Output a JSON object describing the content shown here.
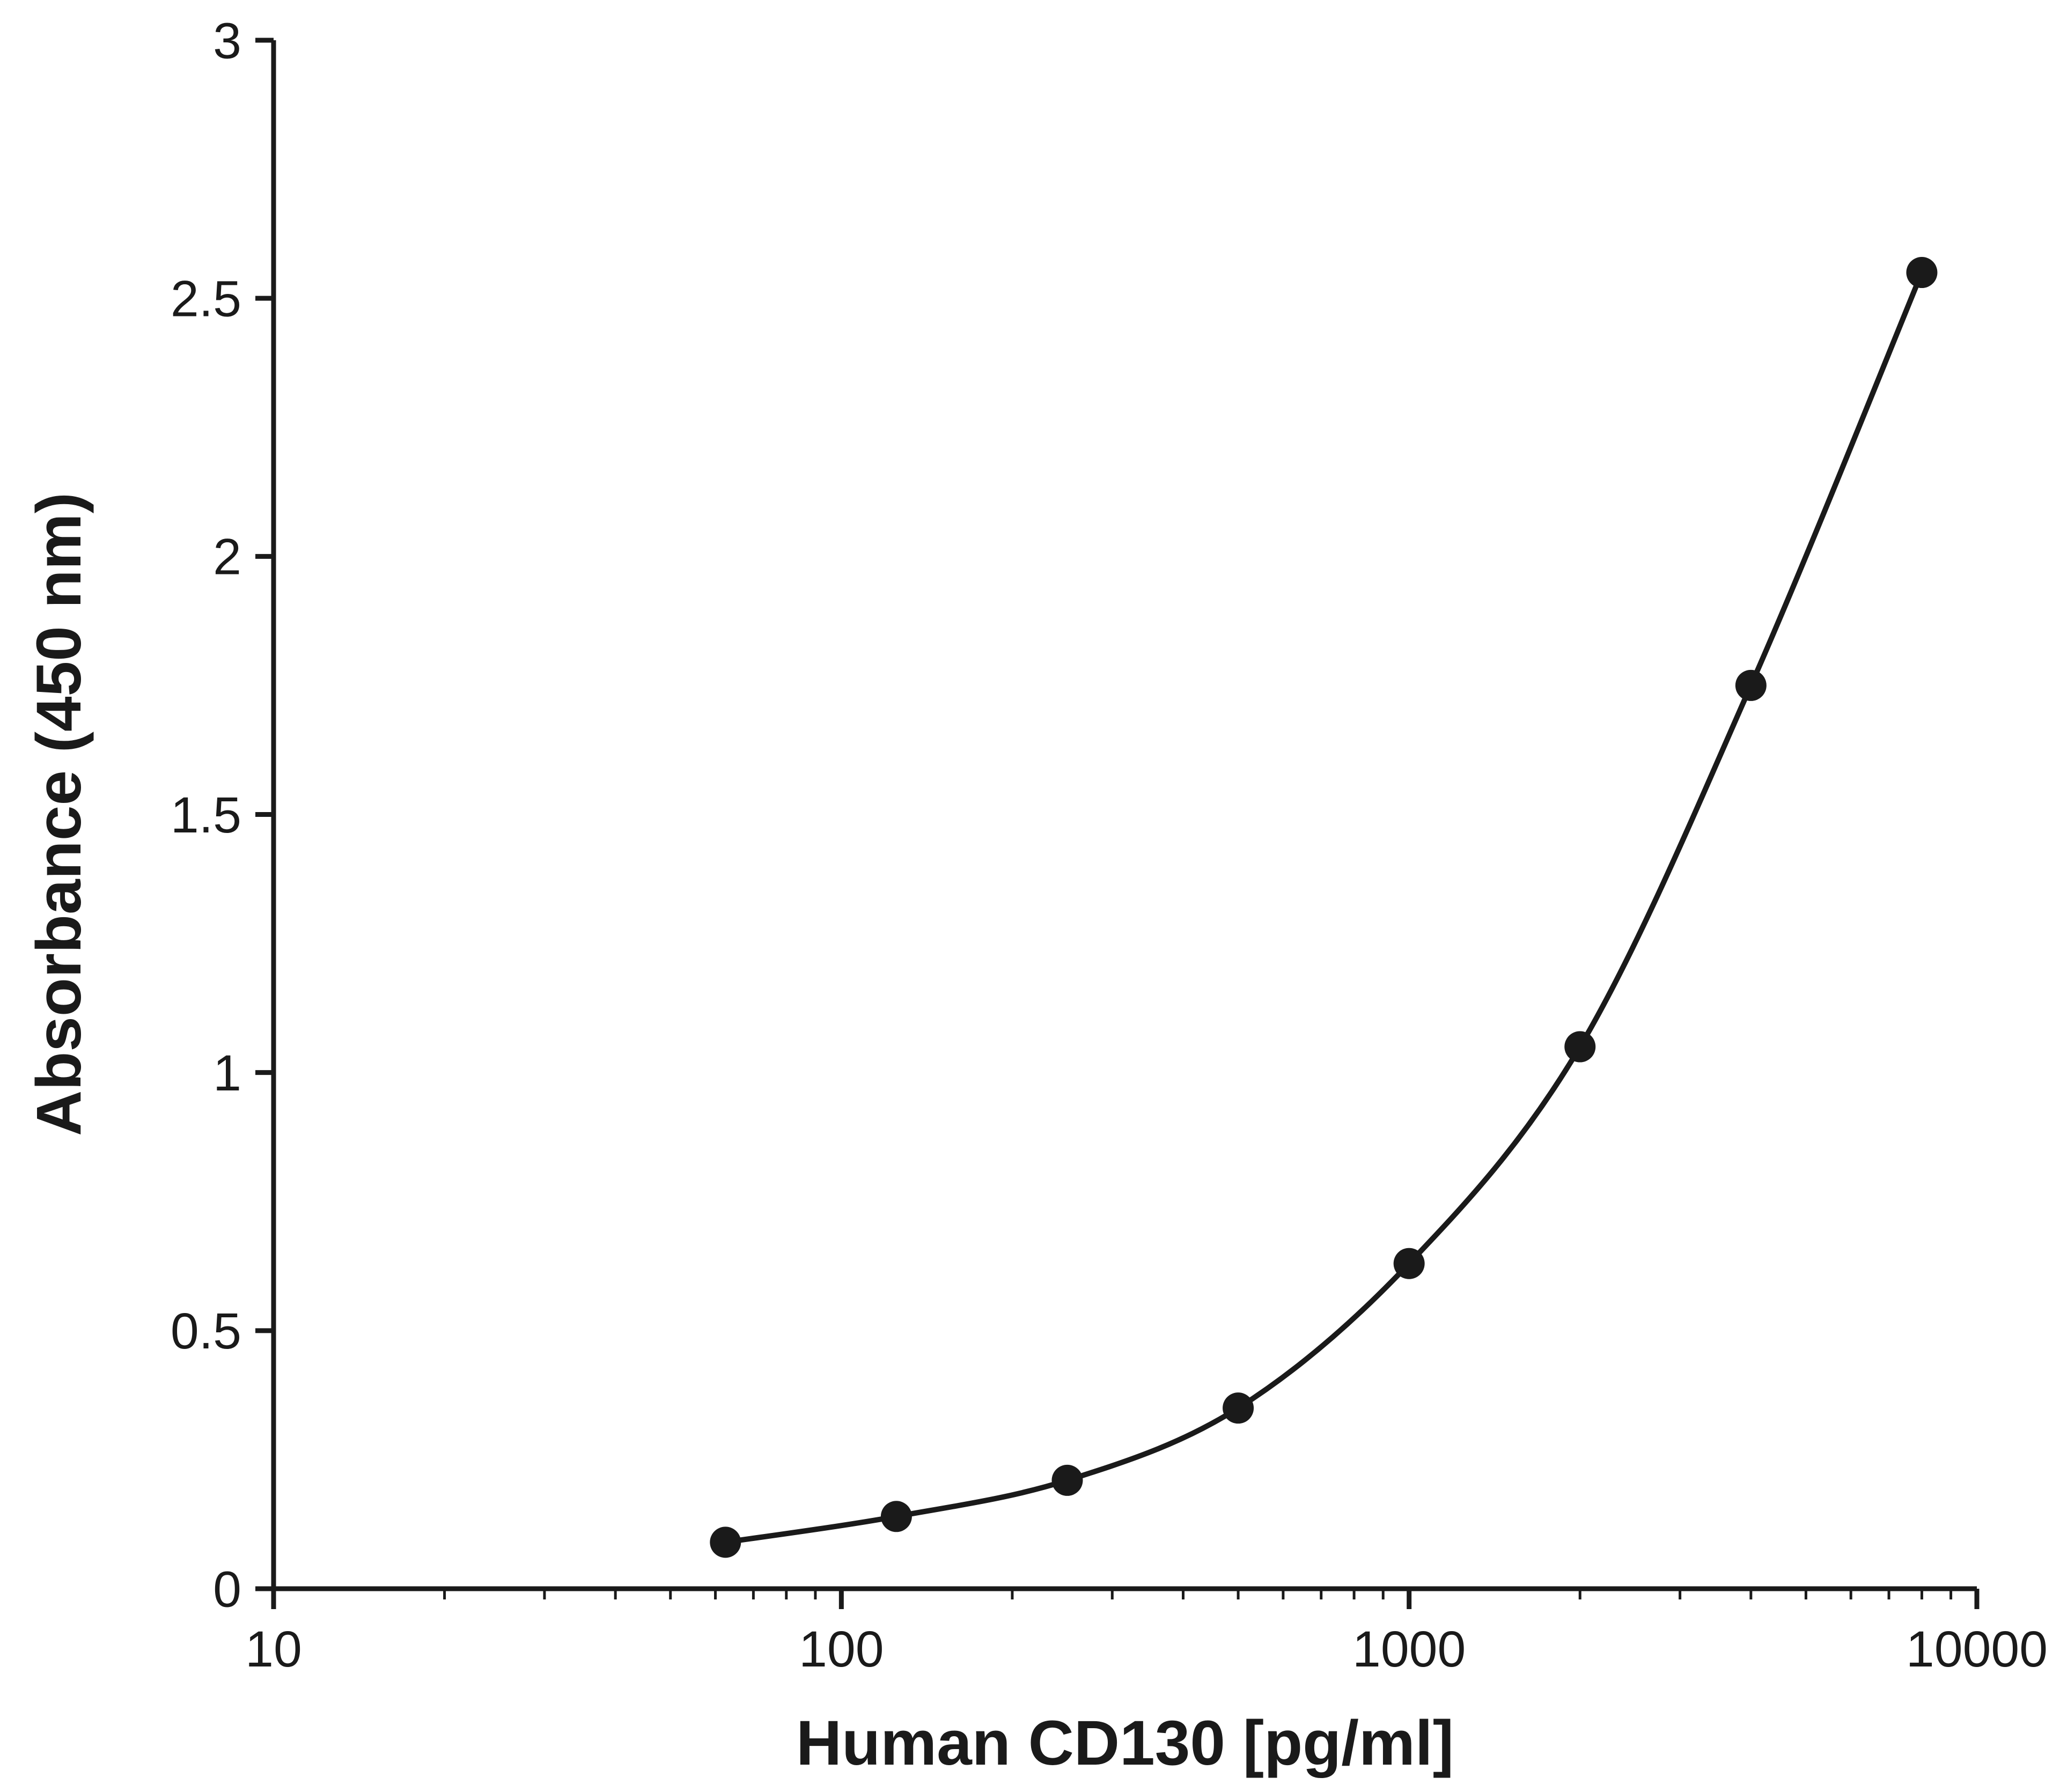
{
  "chart_data": {
    "type": "scatter",
    "title": "",
    "xlabel": "Human CD130 [pg/ml]",
    "ylabel": "Absorbance (450 nm)",
    "xscale": "log",
    "xlim": [
      10,
      10000
    ],
    "ylim": [
      0,
      3
    ],
    "xticks": [
      10,
      100,
      1000,
      10000
    ],
    "xtick_labels": [
      "10",
      "100",
      "1000",
      "10000"
    ],
    "yticks": [
      0,
      0.5,
      1,
      1.5,
      2,
      2.5,
      3
    ],
    "ytick_labels": [
      "0",
      "0.5",
      "1",
      "1.5",
      "2",
      "2.5",
      "3"
    ],
    "grid": false,
    "legend": false,
    "marker": "filled-circle",
    "line_color": "#1a1a1a",
    "marker_color": "#1a1a1a",
    "background_color": "#ffffff",
    "x": [
      62.5,
      125,
      250,
      500,
      1000,
      2000,
      4000,
      8000
    ],
    "y": [
      0.09,
      0.14,
      0.21,
      0.35,
      0.63,
      1.05,
      1.75,
      2.55
    ]
  }
}
